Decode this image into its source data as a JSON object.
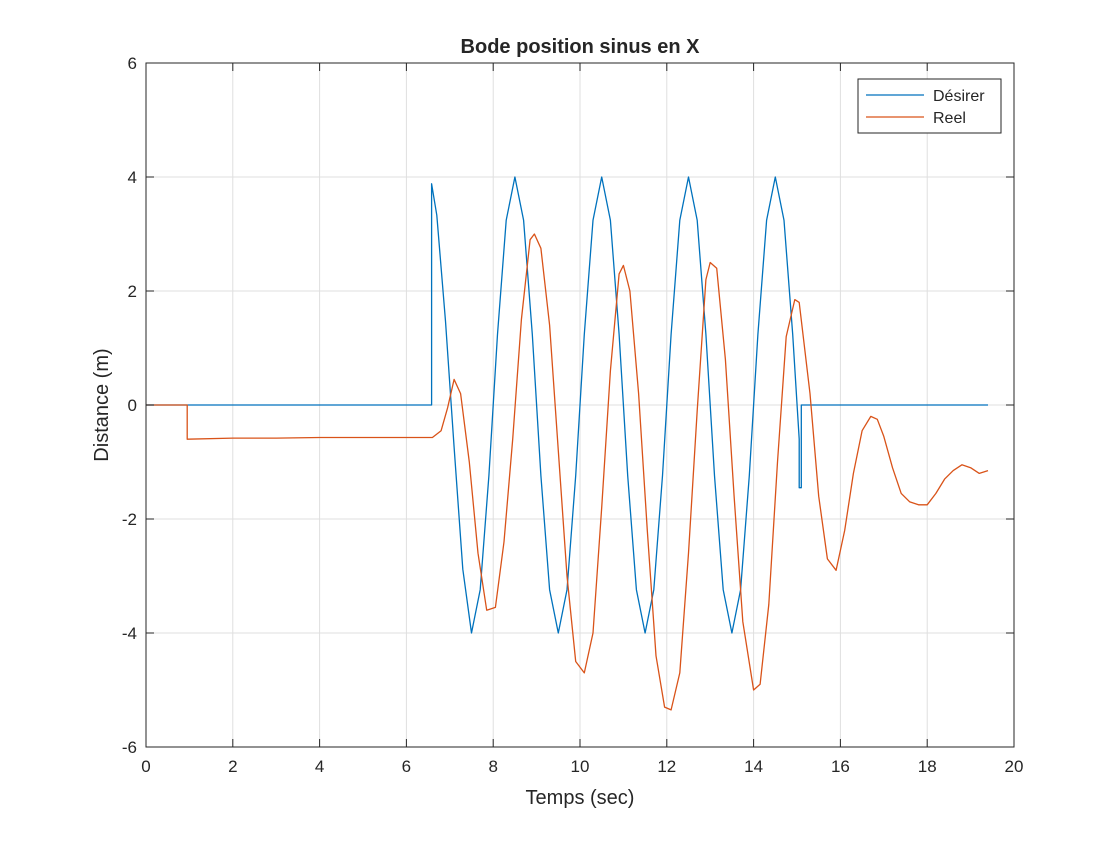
{
  "chart_data": {
    "type": "line",
    "title": "Bode position sinus en X",
    "xlabel": "Temps (sec)",
    "ylabel": "Distance (m)",
    "xlim": [
      0,
      20
    ],
    "ylim": [
      -6,
      6
    ],
    "xticks": [
      0,
      2,
      4,
      6,
      8,
      10,
      12,
      14,
      16,
      18,
      20
    ],
    "yticks": [
      -6,
      -4,
      -2,
      0,
      2,
      4,
      6
    ],
    "grid": true,
    "legend_position": "top-right",
    "series": [
      {
        "name": "Désirer",
        "color": "#0072BD",
        "x": [
          0,
          6.58,
          6.58,
          6.7,
          6.9,
          7.1,
          7.3,
          7.5,
          7.7,
          7.9,
          8.1,
          8.3,
          8.5,
          8.7,
          8.9,
          9.1,
          9.3,
          9.5,
          9.7,
          9.9,
          10.1,
          10.3,
          10.5,
          10.7,
          10.9,
          11.1,
          11.3,
          11.5,
          11.7,
          11.9,
          12.1,
          12.3,
          12.5,
          12.7,
          12.9,
          13.1,
          13.3,
          13.5,
          13.7,
          13.9,
          14.1,
          14.3,
          14.5,
          14.7,
          14.9,
          15.05,
          15.05,
          15.1,
          15.1,
          19.4
        ],
        "y": [
          0,
          0,
          3.88,
          3.33,
          1.47,
          -0.74,
          -2.88,
          -4.0,
          -3.24,
          -1.24,
          1.24,
          3.24,
          4.0,
          3.24,
          1.24,
          -1.24,
          -3.24,
          -4.0,
          -3.24,
          -1.24,
          1.24,
          3.24,
          4.0,
          3.24,
          1.24,
          -1.24,
          -3.24,
          -4.0,
          -3.24,
          -1.24,
          1.24,
          3.24,
          4.0,
          3.24,
          1.24,
          -1.24,
          -3.24,
          -4.0,
          -3.24,
          -1.24,
          1.24,
          3.24,
          4.0,
          3.24,
          1.24,
          -0.6,
          -1.45,
          -1.45,
          0,
          0
        ]
      },
      {
        "name": "Reel",
        "color": "#D95319",
        "x": [
          0,
          0.95,
          0.95,
          2.0,
          3.0,
          4.0,
          5.0,
          6.0,
          6.6,
          6.8,
          6.95,
          7.1,
          7.25,
          7.45,
          7.65,
          7.85,
          8.05,
          8.25,
          8.45,
          8.65,
          8.85,
          8.95,
          9.1,
          9.3,
          9.5,
          9.7,
          9.9,
          10.1,
          10.3,
          10.5,
          10.7,
          10.9,
          11.0,
          11.15,
          11.35,
          11.55,
          11.75,
          11.95,
          12.1,
          12.3,
          12.5,
          12.7,
          12.9,
          13.0,
          13.15,
          13.35,
          13.55,
          13.75,
          14.0,
          14.15,
          14.35,
          14.55,
          14.75,
          14.95,
          15.05,
          15.3,
          15.5,
          15.7,
          15.9,
          16.1,
          16.3,
          16.5,
          16.7,
          16.85,
          17.0,
          17.2,
          17.4,
          17.6,
          17.8,
          18.0,
          18.2,
          18.4,
          18.6,
          18.8,
          19.0,
          19.2,
          19.4
        ],
        "y": [
          0,
          0,
          -0.6,
          -0.58,
          -0.58,
          -0.57,
          -0.57,
          -0.57,
          -0.57,
          -0.45,
          -0.05,
          0.45,
          0.2,
          -1.0,
          -2.6,
          -3.6,
          -3.55,
          -2.4,
          -0.6,
          1.5,
          2.9,
          3.0,
          2.75,
          1.4,
          -0.8,
          -3.0,
          -4.5,
          -4.7,
          -4.0,
          -1.8,
          0.6,
          2.3,
          2.45,
          2.0,
          0.2,
          -2.2,
          -4.4,
          -5.3,
          -5.35,
          -4.7,
          -2.6,
          -0.1,
          2.2,
          2.5,
          2.4,
          0.8,
          -1.6,
          -3.8,
          -5.0,
          -4.9,
          -3.5,
          -1.0,
          1.2,
          1.85,
          1.8,
          0.2,
          -1.6,
          -2.7,
          -2.9,
          -2.2,
          -1.2,
          -0.45,
          -0.2,
          -0.25,
          -0.55,
          -1.1,
          -1.55,
          -1.7,
          -1.75,
          -1.75,
          -1.55,
          -1.3,
          -1.15,
          -1.05,
          -1.1,
          -1.2,
          -1.15
        ]
      }
    ]
  }
}
